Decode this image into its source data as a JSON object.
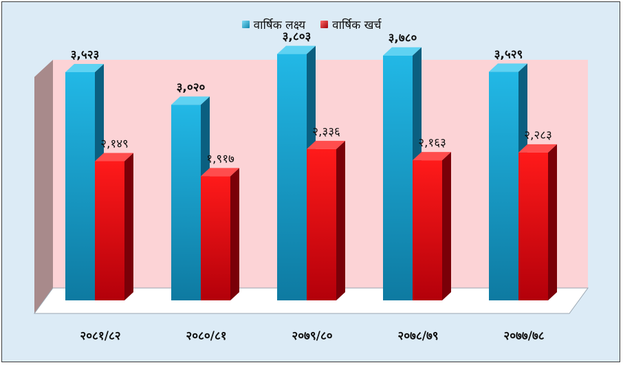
{
  "chart_data": {
    "type": "bar",
    "categories": [
      "२०८१/८२",
      "२०८०/८१",
      "२०७९/८०",
      "२०७८/७९",
      "२०७७/७८"
    ],
    "series": [
      {
        "name": "वार्षिक लक्ष्य",
        "values": [
          3523,
          3020,
          3803,
          3780,
          3529
        ],
        "labels": [
          "३,५२३",
          "३,०२०",
          "३,८०३",
          "३,७८०",
          "३,५२९"
        ],
        "color": "#18a8d6"
      },
      {
        "name": "वार्षिक खर्च",
        "values": [
          2149,
          1917,
          2336,
          2163,
          2283
        ],
        "labels": [
          "२,१४९",
          "१,९१७",
          "२,३३६",
          "२,१६३",
          "२,२८३"
        ],
        "color": "#e8000c"
      }
    ],
    "ylim": [
      0,
      4000
    ],
    "legend_position": "top-center",
    "grid": false,
    "style": "3d-column"
  },
  "colors": {
    "outer_background": "#dcebf6",
    "plot_wall": "#fcd3d6",
    "side_wall": "#a88a8b",
    "floor": "#ffffff"
  }
}
